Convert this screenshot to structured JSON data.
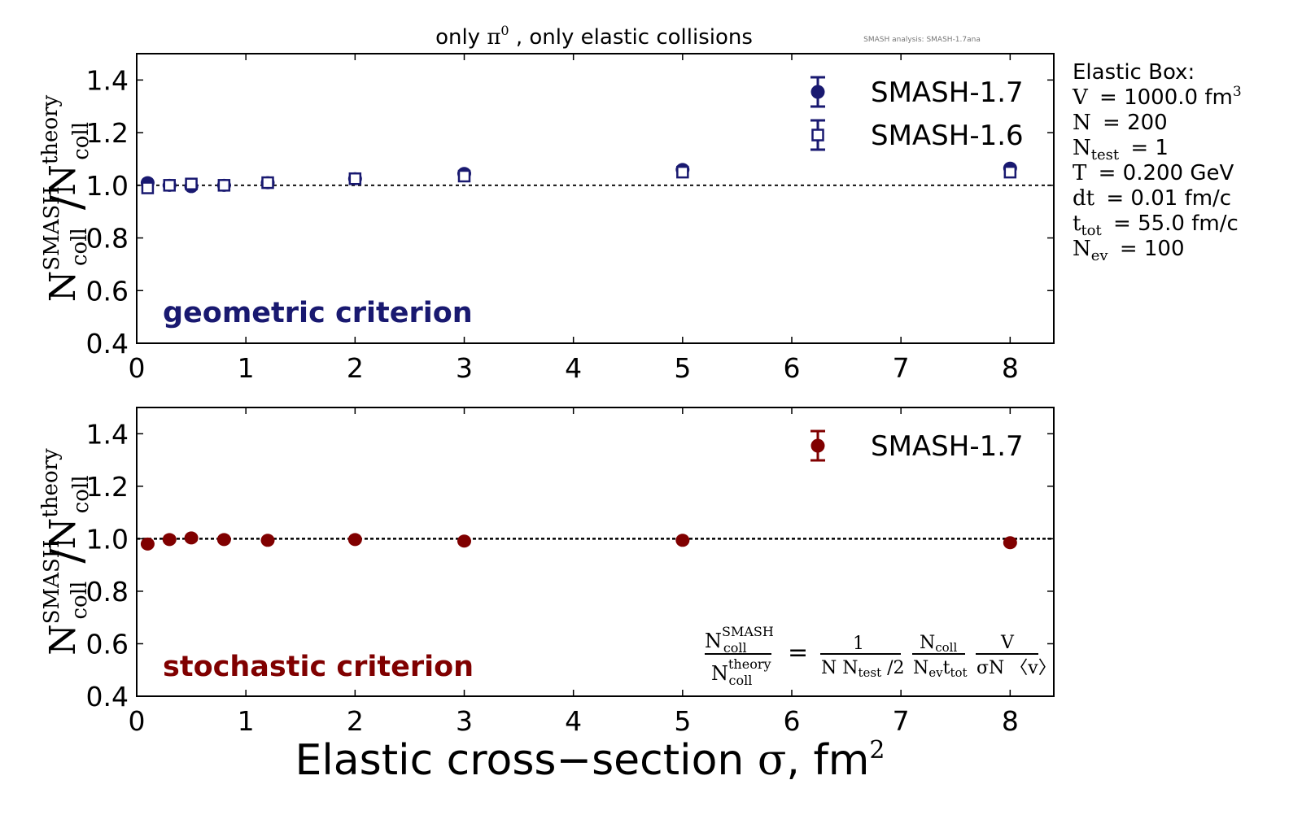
{
  "header": {
    "title_prefix": "only ",
    "title_symbol": "π",
    "title_symbol_sup": "0",
    "title_suffix": " , only elastic collisions",
    "watermark": "SMASH analysis: SMASH-1.7ana"
  },
  "info_box": {
    "heading": "Elastic Box:",
    "lines": [
      {
        "lhs": "V",
        "sub": "",
        "rhs": "= 1000.0 fm",
        "sup": "3"
      },
      {
        "lhs": "N",
        "sub": "",
        "rhs": "= 200",
        "sup": ""
      },
      {
        "lhs": "N",
        "sub": "test",
        "rhs": "= 1",
        "sup": ""
      },
      {
        "lhs": "T",
        "sub": "",
        "rhs": "= 0.200 GeV",
        "sup": ""
      },
      {
        "lhs": "dt",
        "sub": "",
        "rhs": "= 0.01 fm/c",
        "sup": ""
      },
      {
        "lhs": "t",
        "sub": "tot",
        "rhs": "= 55.0 fm/c",
        "sup": ""
      },
      {
        "lhs": "N",
        "sub": "ev",
        "rhs": "= 100",
        "sup": ""
      }
    ]
  },
  "formula": {
    "lhs_num": "N",
    "lhs_num_sub": "coll",
    "lhs_num_sup": "SMASH",
    "lhs_den": "N",
    "lhs_den_sub": "coll",
    "lhs_den_sup": "theory",
    "equals": "=",
    "f1_num": "1",
    "f1_den_a": "N N",
    "f1_den_sub": "test",
    "f1_den_b": " /2",
    "f2_num": "N",
    "f2_num_sub": "coll",
    "f2_den_a": "N",
    "f2_den_sub1": "ev",
    "f2_den_b": "t",
    "f2_den_sub2": "tot",
    "f3_num": "V",
    "f3_den": "σN 〈v〉"
  },
  "colors": {
    "geometric": "#191970",
    "stochastic": "#800000",
    "reference_line": "#000000"
  },
  "chart_data": [
    {
      "type": "scatter",
      "panel": "top",
      "annotation": "geometric criterion",
      "ylabel": "N_coll^SMASH / N_coll^theory",
      "ylabel_parts": {
        "num": "N",
        "num_sub": "coll",
        "num_sup": "SMASH",
        "slash": "/",
        "den": "N",
        "den_sub": "coll",
        "den_sup": "theory"
      },
      "xlabel": "",
      "xlim": [
        0,
        8.4
      ],
      "ylim": [
        0.4,
        1.5
      ],
      "xticks": [
        0,
        1,
        2,
        3,
        4,
        5,
        6,
        7,
        8
      ],
      "xtick_labels": [
        "0",
        "1",
        "2",
        "3",
        "4",
        "5",
        "6",
        "7",
        "8"
      ],
      "yticks": [
        0.4,
        0.6,
        0.8,
        1.0,
        1.2,
        1.4
      ],
      "ytick_labels": [
        "0.4",
        "0.6",
        "0.8",
        "1.0",
        "1.2",
        "1.4"
      ],
      "reference_line": 1.0,
      "grid": false,
      "legend_position": "top-right",
      "series": [
        {
          "name": "SMASH-1.7",
          "marker": "filled-circle",
          "x": [
            0.1,
            0.3,
            0.5,
            0.8,
            1.2,
            2,
            3,
            5,
            8
          ],
          "y": [
            1.01,
            1.0,
            0.995,
            1.0,
            1.01,
            1.025,
            1.045,
            1.06,
            1.065
          ],
          "yerr": [
            0.005,
            0.005,
            0.005,
            0.005,
            0.005,
            0.005,
            0.005,
            0.005,
            0.005
          ]
        },
        {
          "name": "SMASH-1.6",
          "marker": "open-square",
          "x": [
            0.1,
            0.3,
            0.5,
            0.8,
            1.2,
            2,
            3,
            5,
            8
          ],
          "y": [
            0.99,
            1.0,
            1.005,
            1.0,
            1.01,
            1.025,
            1.035,
            1.05,
            1.05
          ],
          "yerr": [
            0.005,
            0.005,
            0.005,
            0.005,
            0.005,
            0.005,
            0.005,
            0.005,
            0.005
          ]
        }
      ]
    },
    {
      "type": "scatter",
      "panel": "bottom",
      "annotation": "stochastic criterion",
      "ylabel": "N_coll^SMASH / N_coll^theory",
      "ylabel_parts": {
        "num": "N",
        "num_sub": "coll",
        "num_sup": "SMASH",
        "slash": "/",
        "den": "N",
        "den_sub": "coll",
        "den_sup": "theory"
      },
      "xlabel": "Elastic cross−section σ, fm²",
      "xlabel_parts": {
        "text": "Elastic cross−section ",
        "sigma": "σ",
        "rest": ", fm",
        "sup": "2"
      },
      "xlim": [
        0,
        8.4
      ],
      "ylim": [
        0.4,
        1.5
      ],
      "xticks": [
        0,
        1,
        2,
        3,
        4,
        5,
        6,
        7,
        8
      ],
      "xtick_labels": [
        "0",
        "1",
        "2",
        "3",
        "4",
        "5",
        "6",
        "7",
        "8"
      ],
      "yticks": [
        0.4,
        0.6,
        0.8,
        1.0,
        1.2,
        1.4
      ],
      "ytick_labels": [
        "0.4",
        "0.6",
        "0.8",
        "1.0",
        "1.2",
        "1.4"
      ],
      "reference_line": 1.0,
      "grid": false,
      "legend_position": "top-right",
      "series": [
        {
          "name": "SMASH-1.7",
          "marker": "filled-circle",
          "x": [
            0.1,
            0.3,
            0.5,
            0.8,
            1.2,
            2,
            3,
            5,
            8
          ],
          "y": [
            0.98,
            0.997,
            1.003,
            0.997,
            0.994,
            0.997,
            0.991,
            0.994,
            0.985
          ],
          "yerr": [
            0.005,
            0.003,
            0.003,
            0.003,
            0.003,
            0.003,
            0.003,
            0.003,
            0.003
          ]
        }
      ]
    }
  ]
}
